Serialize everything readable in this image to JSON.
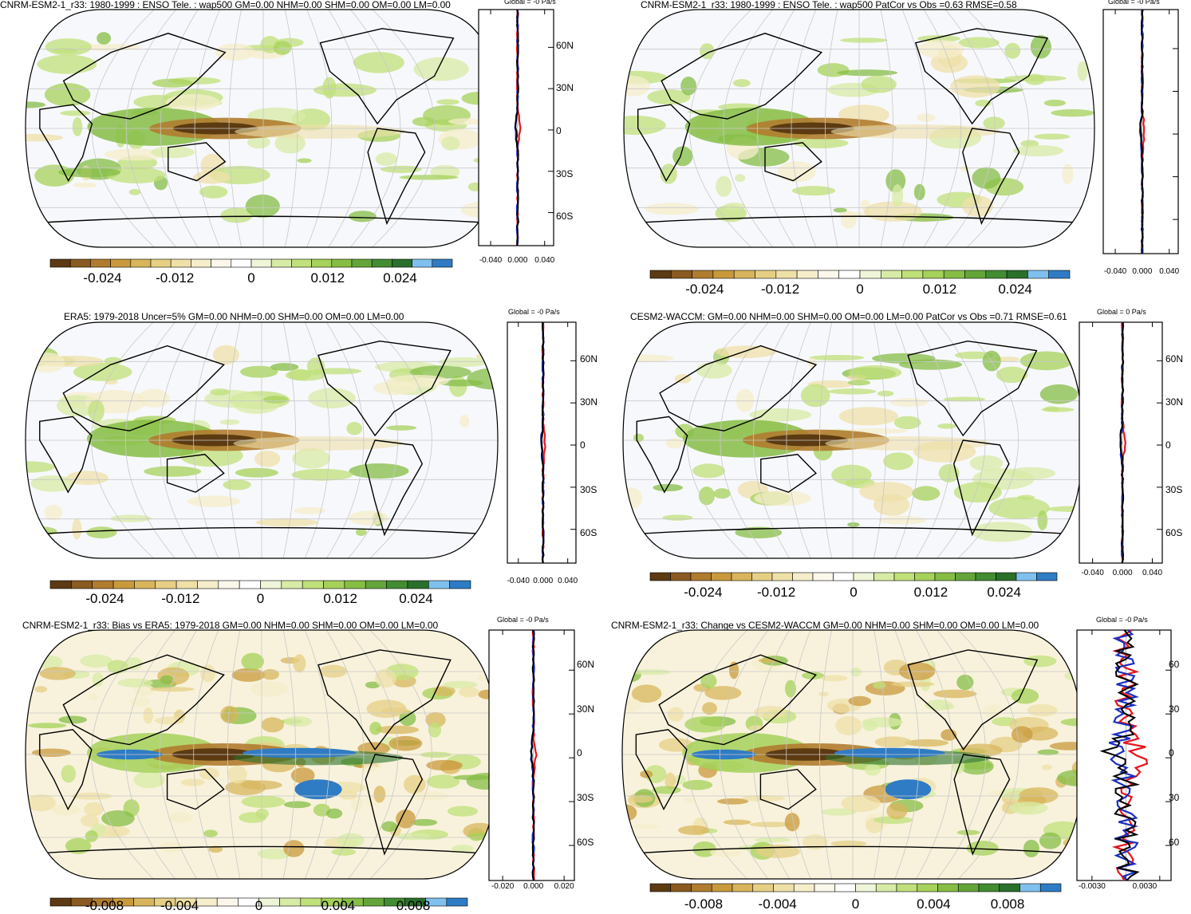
{
  "panels": [
    {
      "id": "p1",
      "title": "CNRM-ESM2-1_r33: 1980-1999 : ENSO Tele. : wap500 GM=0.00 NHM=0.00 SHM=0.00 OM=0.00 LM=0.00",
      "profile_title": "Global = -0 Pa/s",
      "colorbar_labels": [
        "-0.024",
        "-0.012",
        "0",
        "0.012",
        "0.024"
      ],
      "profile_ticks": [
        "-0.040",
        "0.000",
        "0.040"
      ],
      "lat_labels": [
        "60N",
        "30N",
        "0",
        "30S",
        "60S"
      ]
    },
    {
      "id": "p2",
      "title": "CNRM-ESM2-1_r33: 1980-1999 : ENSO Tele. : wap500 PatCor vs Obs =0.63 RMSE=0.58",
      "profile_title": "Global = -0 Pa/s",
      "colorbar_labels": [
        "-0.024",
        "-0.012",
        "0",
        "0.012",
        "0.024"
      ],
      "profile_ticks": [
        "-0.040",
        "0.000",
        "0.040"
      ],
      "lat_labels": []
    },
    {
      "id": "p3",
      "title": "ERA5: 1979-2018 Uncer=5% GM=0.00 NHM=0.00 SHM=0.00 OM=0.00 LM=0.00",
      "profile_title": "Global = -0 Pa/s",
      "colorbar_labels": [
        "-0.024",
        "-0.012",
        "0",
        "0.012",
        "0.024"
      ],
      "profile_ticks": [
        "-0.040",
        "0.000",
        "0.040"
      ],
      "lat_labels": [
        "60N",
        "30N",
        "0",
        "30S",
        "60S"
      ]
    },
    {
      "id": "p4",
      "title": "CESM2-WACCM: GM=0.00 NHM=0.00 SHM=0.00 OM=0.00 LM=0.00 PatCor vs Obs =0.71 RMSE=0.61",
      "profile_title": "Global = 0 Pa/s",
      "colorbar_labels": [
        "-0.024",
        "-0.012",
        "0",
        "0.012",
        "0.024"
      ],
      "profile_ticks": [
        "-0.040",
        "0.000",
        "0.040"
      ],
      "lat_labels": [
        "60N",
        "30N",
        "0",
        "30S",
        "60S"
      ]
    },
    {
      "id": "p5",
      "title": "CNRM-ESM2-1_r33: Bias vs ERA5: 1979-2018 GM=0.00 NHM=0.00 SHM=0.00 OM=0.00 LM=0.00",
      "profile_title": "Global = -0 Pa/s",
      "colorbar_labels": [
        "-0.008",
        "-0.004",
        "0",
        "0.004",
        "0.008"
      ],
      "profile_ticks": [
        "-0.020",
        "0.000",
        "0.020"
      ],
      "lat_labels": [
        "60N",
        "30N",
        "0",
        "30S",
        "60S"
      ]
    },
    {
      "id": "p6",
      "title": "CNRM-ESM2-1_r33: Change vs CESM2-WACCM GM=0.00 NHM=0.00 SHM=0.00 OM=0.00 LM=0.00",
      "profile_title": "Global = -0 Pa/s",
      "colorbar_labels": [
        "-0.008",
        "-0.004",
        "0",
        "0.004",
        "0.008"
      ],
      "profile_ticks": [
        "-0.0030",
        "0.0030"
      ],
      "lat_labels": [
        "60",
        "30",
        "0",
        "30",
        "60"
      ]
    }
  ],
  "colorbar_colors": [
    "#5c3a12",
    "#8a5a20",
    "#b07c30",
    "#c99a3c",
    "#d8b55c",
    "#e6cf85",
    "#efe0a8",
    "#f6edcb",
    "#fbf7ea",
    "#ffffff",
    "#eef5d8",
    "#d8eba6",
    "#c0e07a",
    "#a6d15a",
    "#86bd45",
    "#64a53a",
    "#428c32",
    "#2a6f2a",
    "#7fc0ee",
    "#2f7cc4"
  ],
  "line_colors": {
    "model": "#e8141c",
    "obs": "#1b2fbf",
    "mean": "#000000"
  }
}
